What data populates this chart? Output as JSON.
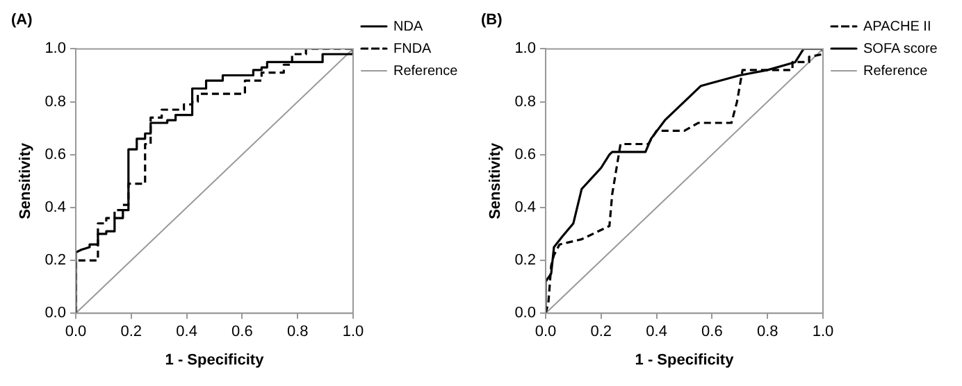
{
  "chart_data": [
    {
      "type": "line",
      "title": "(A)",
      "xlabel": "1 - Specificity",
      "ylabel": "Sensitivity",
      "xlim": [
        0,
        1
      ],
      "ylim": [
        0,
        1
      ],
      "xticks": [
        {
          "value": 0,
          "label": "0.0"
        },
        {
          "value": 0.2,
          "label": "0.2"
        },
        {
          "value": 0.4,
          "label": "0.4"
        },
        {
          "value": 0.6,
          "label": "0.6"
        },
        {
          "value": 0.8,
          "label": "0.8"
        },
        {
          "value": 1,
          "label": "1.0"
        }
      ],
      "yticks": [
        {
          "value": 0,
          "label": "0.0"
        },
        {
          "value": 0.2,
          "label": "0.2"
        },
        {
          "value": 0.4,
          "label": "0.4"
        },
        {
          "value": 0.6,
          "label": "0.6"
        },
        {
          "value": 0.8,
          "label": "0.8"
        },
        {
          "value": 1,
          "label": "1.0"
        }
      ],
      "grid": false,
      "legend": "right",
      "marker": "none",
      "series": [
        {
          "name": "NDA",
          "color": "#000000",
          "line_style": "solid",
          "x": [
            0,
            0,
            0.02,
            0.05,
            0.05,
            0.08,
            0.08,
            0.11,
            0.11,
            0.14,
            0.14,
            0.17,
            0.17,
            0.19,
            0.19,
            0.22,
            0.22,
            0.25,
            0.25,
            0.27,
            0.27,
            0.33,
            0.33,
            0.36,
            0.36,
            0.42,
            0.42,
            0.47,
            0.47,
            0.53,
            0.53,
            0.64,
            0.64,
            0.67,
            0.67,
            0.69,
            0.69,
            0.89,
            0.89,
            1,
            1
          ],
          "values": [
            0,
            0.23,
            0.24,
            0.25,
            0.26,
            0.26,
            0.3,
            0.3,
            0.31,
            0.31,
            0.36,
            0.36,
            0.39,
            0.39,
            0.62,
            0.62,
            0.66,
            0.66,
            0.68,
            0.68,
            0.72,
            0.72,
            0.73,
            0.73,
            0.75,
            0.75,
            0.85,
            0.85,
            0.88,
            0.88,
            0.9,
            0.9,
            0.92,
            0.92,
            0.93,
            0.93,
            0.95,
            0.95,
            0.98,
            0.98,
            1
          ]
        },
        {
          "name": "FNDA",
          "color": "#000000",
          "line_style": "dashed",
          "x": [
            0,
            0,
            0.08,
            0.08,
            0.11,
            0.11,
            0.14,
            0.14,
            0.17,
            0.17,
            0.19,
            0.19,
            0.25,
            0.25,
            0.27,
            0.27,
            0.31,
            0.31,
            0.39,
            0.39,
            0.42,
            0.42,
            0.44,
            0.44,
            0.61,
            0.61,
            0.67,
            0.67,
            0.75,
            0.75,
            0.78,
            0.78,
            0.83,
            0.83,
            1
          ],
          "values": [
            0,
            0.2,
            0.2,
            0.34,
            0.34,
            0.36,
            0.36,
            0.39,
            0.39,
            0.41,
            0.41,
            0.49,
            0.49,
            0.64,
            0.64,
            0.74,
            0.74,
            0.77,
            0.77,
            0.79,
            0.79,
            0.8,
            0.8,
            0.83,
            0.83,
            0.88,
            0.88,
            0.91,
            0.91,
            0.94,
            0.94,
            0.98,
            0.98,
            1,
            1
          ]
        },
        {
          "name": "Reference",
          "color": "#999999",
          "line_style": "solid",
          "x": [
            0,
            1
          ],
          "values": [
            0,
            1
          ]
        }
      ]
    },
    {
      "type": "line",
      "title": "(B)",
      "xlabel": "1 - Specificity",
      "ylabel": "Sensitivity",
      "xlim": [
        0,
        1
      ],
      "ylim": [
        0,
        1
      ],
      "xticks": [
        {
          "value": 0,
          "label": "0.0"
        },
        {
          "value": 0.2,
          "label": "0.2"
        },
        {
          "value": 0.4,
          "label": "0.4"
        },
        {
          "value": 0.6,
          "label": "0.6"
        },
        {
          "value": 0.8,
          "label": "0.8"
        },
        {
          "value": 1,
          "label": "1.0"
        }
      ],
      "yticks": [
        {
          "value": 0,
          "label": "0.0"
        },
        {
          "value": 0.2,
          "label": "0.2"
        },
        {
          "value": 0.4,
          "label": "0.4"
        },
        {
          "value": 0.6,
          "label": "0.6"
        },
        {
          "value": 0.8,
          "label": "0.8"
        },
        {
          "value": 1,
          "label": "1.0"
        }
      ],
      "grid": false,
      "legend": "right",
      "marker": "none",
      "series": [
        {
          "name": "APACHE II",
          "color": "#000000",
          "line_style": "dashed",
          "x": [
            0,
            0.01,
            0.02,
            0.03,
            0.05,
            0.13,
            0.23,
            0.24,
            0.27,
            0.37,
            0.4,
            0.5,
            0.55,
            0.67,
            0.69,
            0.71,
            0.8,
            0.89,
            0.89,
            0.95,
            0.95,
            1,
            1
          ],
          "values": [
            0,
            0.04,
            0.18,
            0.22,
            0.26,
            0.28,
            0.33,
            0.45,
            0.64,
            0.64,
            0.69,
            0.69,
            0.72,
            0.72,
            0.8,
            0.92,
            0.92,
            0.92,
            0.95,
            0.95,
            0.97,
            0.98,
            1
          ]
        },
        {
          "name": "SOFA score",
          "color": "#000000",
          "line_style": "solid",
          "x": [
            0,
            0,
            0.02,
            0.03,
            0.06,
            0.1,
            0.13,
            0.2,
            0.23,
            0.24,
            0.36,
            0.38,
            0.43,
            0.56,
            0.7,
            0.8,
            0.9,
            0.93,
            0.99,
            1
          ],
          "values": [
            0,
            0.12,
            0.15,
            0.25,
            0.29,
            0.34,
            0.47,
            0.55,
            0.6,
            0.61,
            0.61,
            0.66,
            0.73,
            0.86,
            0.9,
            0.92,
            0.95,
            1,
            1,
            1
          ]
        },
        {
          "name": "Reference",
          "color": "#999999",
          "line_style": "solid",
          "x": [
            0,
            1
          ],
          "values": [
            0,
            1
          ]
        }
      ]
    }
  ]
}
